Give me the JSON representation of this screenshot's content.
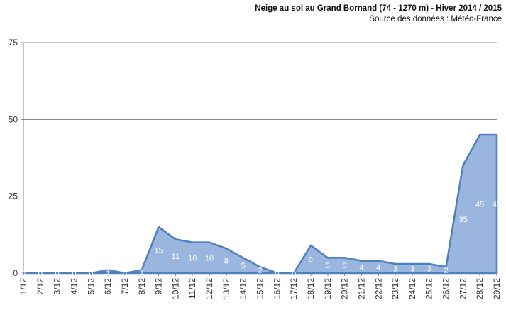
{
  "chart_data": {
    "type": "area",
    "title": "Neige au sol au Grand Bornand (74 - 1270 m) - Hiver 2014 / 2015",
    "subtitle": "Source des données : Météo-France",
    "categories": [
      "1/12",
      "2/12",
      "3/12",
      "4/12",
      "5/12",
      "6/12",
      "7/12",
      "8/12",
      "9/12",
      "10/12",
      "11/12",
      "12/12",
      "13/12",
      "14/12",
      "15/12",
      "16/12",
      "17/12",
      "18/12",
      "19/12",
      "20/12",
      "21/12",
      "22/12",
      "23/12",
      "24/12",
      "25/12",
      "26/12",
      "27/12",
      "28/12",
      "29/12"
    ],
    "values": [
      0,
      0,
      0,
      0,
      0,
      1,
      0,
      1,
      15,
      11,
      10,
      10,
      8,
      5,
      2,
      0,
      0,
      9,
      5,
      5,
      4,
      4,
      3,
      3,
      3,
      2,
      35,
      45,
      45
    ],
    "xlabel": "",
    "ylabel": "",
    "ylim": [
      0,
      75
    ],
    "yticks": [
      0,
      25,
      50,
      75
    ],
    "grid": true,
    "legend": "none",
    "label_placement": "center-of-area",
    "colors": {
      "area_fill": "#9AB5DE",
      "area_line": "#4F81BD",
      "data_label": "#FFFFFF",
      "grid": "#898989",
      "axis_text": "#333333",
      "title_text": "#111111"
    }
  }
}
